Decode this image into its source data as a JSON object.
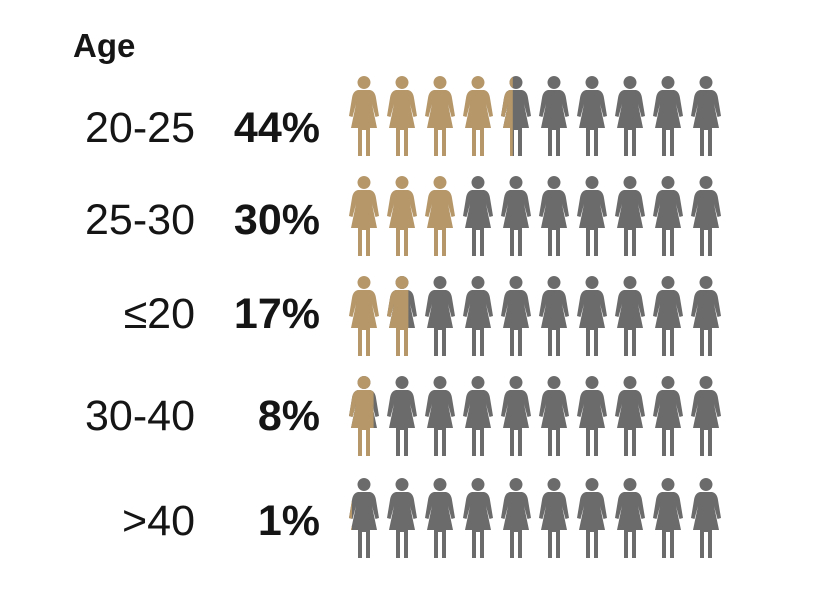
{
  "chart_data": {
    "type": "bar",
    "title": "Age",
    "categories": [
      "20-25",
      "25-30",
      "≤20",
      "30-40",
      ">40"
    ],
    "value_labels": [
      "44%",
      "30%",
      "17%",
      "8%",
      "1%"
    ],
    "values": [
      44,
      30,
      17,
      8,
      1
    ],
    "icons_per_row": 10,
    "icon": "female-person-icon",
    "colors": {
      "filled": "#b59769",
      "empty": "#6b6b6b",
      "text": "#151515"
    }
  }
}
